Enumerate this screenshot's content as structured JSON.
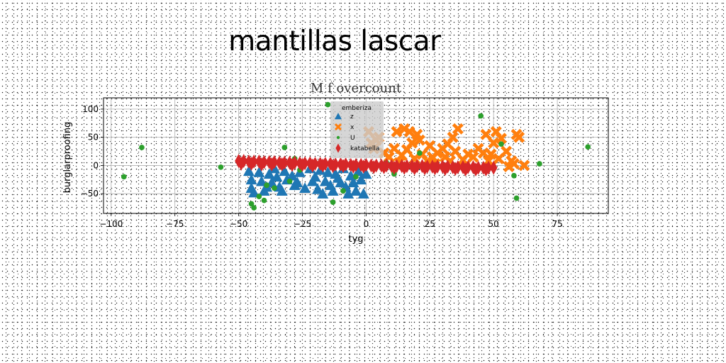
{
  "page": {
    "title": "mantillas lascar"
  },
  "chart_data": {
    "type": "scatter",
    "title": "M f overcount",
    "xlabel": "tyg",
    "ylabel": "burglarproofing",
    "xlim": [
      -103,
      95
    ],
    "ylim": [
      -85,
      120
    ],
    "xticks": [
      -100,
      -75,
      -50,
      -25,
      0,
      25,
      50,
      75
    ],
    "yticks": [
      -50,
      0,
      50,
      100
    ],
    "grid": true,
    "legend": {
      "title": "emberiza",
      "position": "upper center"
    },
    "series": [
      {
        "name": "z",
        "marker": "triangle",
        "color": "#1f77b4",
        "points": [
          [
            -46,
            -10
          ],
          [
            -45,
            -25
          ],
          [
            -45,
            -40
          ],
          [
            -42,
            -12
          ],
          [
            -41,
            -28
          ],
          [
            -40,
            -45
          ],
          [
            -38,
            -15
          ],
          [
            -37,
            -30
          ],
          [
            -36,
            -5
          ],
          [
            -35,
            -20
          ],
          [
            -34,
            -38
          ],
          [
            -32,
            -10
          ],
          [
            -31,
            -25
          ],
          [
            -29,
            -18
          ],
          [
            -27,
            -30
          ],
          [
            -26,
            -12
          ],
          [
            -24,
            -40
          ],
          [
            -22,
            -5
          ],
          [
            -20,
            -20
          ],
          [
            -19,
            -42
          ],
          [
            -18,
            -8
          ],
          [
            -16,
            -28
          ],
          [
            -15,
            -12
          ],
          [
            -13,
            -45
          ],
          [
            -12,
            -15
          ],
          [
            -10,
            -30
          ],
          [
            -9,
            -5
          ],
          [
            -8,
            -38
          ],
          [
            -6,
            -18
          ],
          [
            -5,
            -30
          ],
          [
            -4,
            -45
          ],
          [
            -3,
            -10
          ],
          [
            -2,
            -25
          ],
          [
            -1,
            -50
          ],
          [
            0,
            -15
          ],
          [
            -44,
            -48
          ],
          [
            -39,
            -38
          ],
          [
            -33,
            -45
          ],
          [
            -28,
            -35
          ],
          [
            -21,
            -28
          ],
          [
            -14,
            -35
          ],
          [
            -7,
            -50
          ],
          [
            -11,
            -22
          ],
          [
            -17,
            -50
          ]
        ]
      },
      {
        "name": "x",
        "marker": "x",
        "color": "#ff7f0e",
        "points": [
          [
            1,
            60
          ],
          [
            2,
            40
          ],
          [
            3,
            30
          ],
          [
            4,
            45
          ],
          [
            5,
            50
          ],
          [
            7,
            22
          ],
          [
            9,
            15
          ],
          [
            11,
            30
          ],
          [
            12,
            60
          ],
          [
            13,
            5
          ],
          [
            14,
            18
          ],
          [
            15,
            65
          ],
          [
            16,
            28
          ],
          [
            17,
            60
          ],
          [
            18,
            40
          ],
          [
            19,
            12
          ],
          [
            20,
            55
          ],
          [
            21,
            45
          ],
          [
            22,
            20
          ],
          [
            24,
            8
          ],
          [
            25,
            35
          ],
          [
            26,
            15
          ],
          [
            28,
            22
          ],
          [
            30,
            30
          ],
          [
            31,
            15
          ],
          [
            32,
            38
          ],
          [
            34,
            50
          ],
          [
            35,
            25
          ],
          [
            36,
            65
          ],
          [
            38,
            10
          ],
          [
            40,
            20
          ],
          [
            42,
            15
          ],
          [
            44,
            30
          ],
          [
            46,
            22
          ],
          [
            47,
            55
          ],
          [
            48,
            8
          ],
          [
            49,
            20
          ],
          [
            50,
            40
          ],
          [
            51,
            60
          ],
          [
            52,
            12
          ],
          [
            53,
            48
          ],
          [
            55,
            25
          ],
          [
            57,
            8
          ],
          [
            58,
            3
          ],
          [
            59,
            55
          ],
          [
            60,
            50
          ],
          [
            62,
            0
          ],
          [
            56,
            -2
          ],
          [
            33,
            8
          ],
          [
            27,
            3
          ]
        ]
      },
      {
        "name": "U",
        "marker": "circle",
        "color": "#2ca02c",
        "points": [
          [
            -95,
            -20
          ],
          [
            -88,
            32
          ],
          [
            -57,
            -3
          ],
          [
            -45,
            -68
          ],
          [
            -44,
            -75
          ],
          [
            -42,
            -55
          ],
          [
            -40,
            -62
          ],
          [
            -39,
            -35
          ],
          [
            -36,
            -40
          ],
          [
            -32,
            32
          ],
          [
            -30,
            -28
          ],
          [
            -28,
            12
          ],
          [
            -15,
            108
          ],
          [
            -13,
            -65
          ],
          [
            -9,
            -45
          ],
          [
            -4,
            -20
          ],
          [
            11,
            -15
          ],
          [
            21,
            22
          ],
          [
            45,
            88
          ],
          [
            53,
            38
          ],
          [
            58,
            -18
          ],
          [
            59,
            -58
          ],
          [
            68,
            3
          ],
          [
            87,
            33
          ],
          [
            -26,
            -8
          ],
          [
            8,
            5
          ]
        ]
      },
      {
        "name": "katabella",
        "marker": "diamond",
        "color": "#d62728",
        "points": [
          [
            -50,
            8
          ],
          [
            -48,
            8
          ],
          [
            -46,
            7
          ],
          [
            -44,
            7
          ],
          [
            -42,
            7
          ],
          [
            -40,
            6
          ],
          [
            -38,
            6
          ],
          [
            -36,
            6
          ],
          [
            -34,
            5
          ],
          [
            -32,
            5
          ],
          [
            -30,
            5
          ],
          [
            -28,
            5
          ],
          [
            -26,
            4
          ],
          [
            -24,
            4
          ],
          [
            -22,
            4
          ],
          [
            -20,
            3
          ],
          [
            -18,
            3
          ],
          [
            -16,
            3
          ],
          [
            -14,
            3
          ],
          [
            -12,
            2
          ],
          [
            -10,
            2
          ],
          [
            -8,
            2
          ],
          [
            -6,
            1
          ],
          [
            -4,
            1
          ],
          [
            -2,
            1
          ],
          [
            0,
            1
          ],
          [
            2,
            0
          ],
          [
            4,
            0
          ],
          [
            6,
            0
          ],
          [
            8,
            0
          ],
          [
            10,
            -1
          ],
          [
            12,
            -1
          ],
          [
            14,
            -1
          ],
          [
            16,
            -1
          ],
          [
            18,
            -1
          ],
          [
            20,
            -1
          ],
          [
            22,
            -1
          ],
          [
            24,
            -2
          ],
          [
            26,
            -2
          ],
          [
            28,
            -2
          ],
          [
            30,
            -2
          ],
          [
            32,
            -2
          ],
          [
            34,
            -3
          ],
          [
            36,
            -3
          ],
          [
            38,
            -3
          ],
          [
            40,
            -3
          ],
          [
            42,
            -3
          ],
          [
            44,
            -4
          ],
          [
            46,
            -4
          ],
          [
            48,
            -4
          ],
          [
            50,
            -4
          ],
          [
            -49,
            3
          ],
          [
            -45,
            3
          ],
          [
            -41,
            2
          ],
          [
            -37,
            2
          ],
          [
            -33,
            2
          ],
          [
            -29,
            1
          ],
          [
            -25,
            1
          ],
          [
            -21,
            0
          ],
          [
            -17,
            0
          ],
          [
            -13,
            -1
          ],
          [
            -9,
            -1
          ],
          [
            -5,
            -2
          ],
          [
            -1,
            -2
          ],
          [
            3,
            -3
          ],
          [
            7,
            -3
          ],
          [
            11,
            -4
          ],
          [
            15,
            -4
          ],
          [
            19,
            -5
          ],
          [
            23,
            -5
          ],
          [
            27,
            -5
          ],
          [
            31,
            -6
          ],
          [
            35,
            -6
          ],
          [
            39,
            -7
          ],
          [
            43,
            -7
          ],
          [
            47,
            -7
          ]
        ]
      }
    ]
  }
}
